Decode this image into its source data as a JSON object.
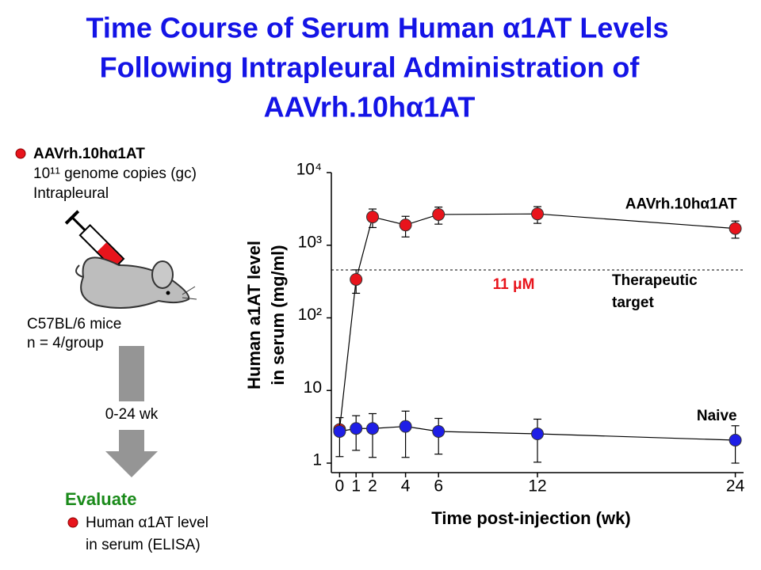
{
  "chart_data": {
    "type": "scatter",
    "title": [
      "Time Course of Serum Human α1AT Levels",
      "Following Intrapleural Administration of",
      "AAVrh.10hα1AT"
    ],
    "x_label": "Time post-injection (wk)",
    "y_label": [
      "Human a1AT level",
      "in serum (mg/ml)"
    ],
    "x": [
      0,
      1,
      2,
      4,
      6,
      12,
      24
    ],
    "xlim": [
      -0.5,
      24.5
    ],
    "xticks": [
      0,
      1,
      2,
      4,
      6,
      12,
      24
    ],
    "ylim": [
      1,
      10000
    ],
    "yticks": [
      1,
      10,
      {
        "value": 100,
        "label": "10²"
      },
      {
        "value": 1000,
        "label": "10³"
      },
      {
        "value": 10000,
        "label": "10⁴"
      }
    ],
    "log_y": true,
    "connect": true,
    "series": [
      {
        "name": "AAVrh.10hα1AT",
        "color": "#e8141c",
        "values": [
          2.9,
          338,
          2450,
          1900,
          2650,
          2700,
          1700
        ],
        "errors": [
          0.3,
          120,
          700,
          600,
          700,
          700,
          450
        ]
      },
      {
        "name": "Naive",
        "color": "#1e1ee6",
        "values": [
          2.73,
          3.0,
          3.0,
          3.2,
          2.73,
          2.53,
          2.07
        ],
        "errors": [
          1.5,
          1.5,
          1.8,
          2.0,
          1.4,
          1.5,
          1.2
        ]
      }
    ],
    "reference_line": {
      "value": 457,
      "label": [
        "Therapeutic",
        "target"
      ],
      "note": "11 μM",
      "note_color": "#e8141c"
    }
  },
  "panel": {
    "treatment": {
      "name": "AAVrh.10hα1AT",
      "dose": "10¹¹ genome copies (gc)",
      "route": "Intrapleural"
    },
    "animals": [
      "C57BL/6 mice",
      "n = 4/group"
    ],
    "duration": "0-24 wk",
    "evaluate": {
      "heading": "Evaluate",
      "items": [
        "Human α1AT level",
        "in serum (ELISA)"
      ]
    }
  }
}
